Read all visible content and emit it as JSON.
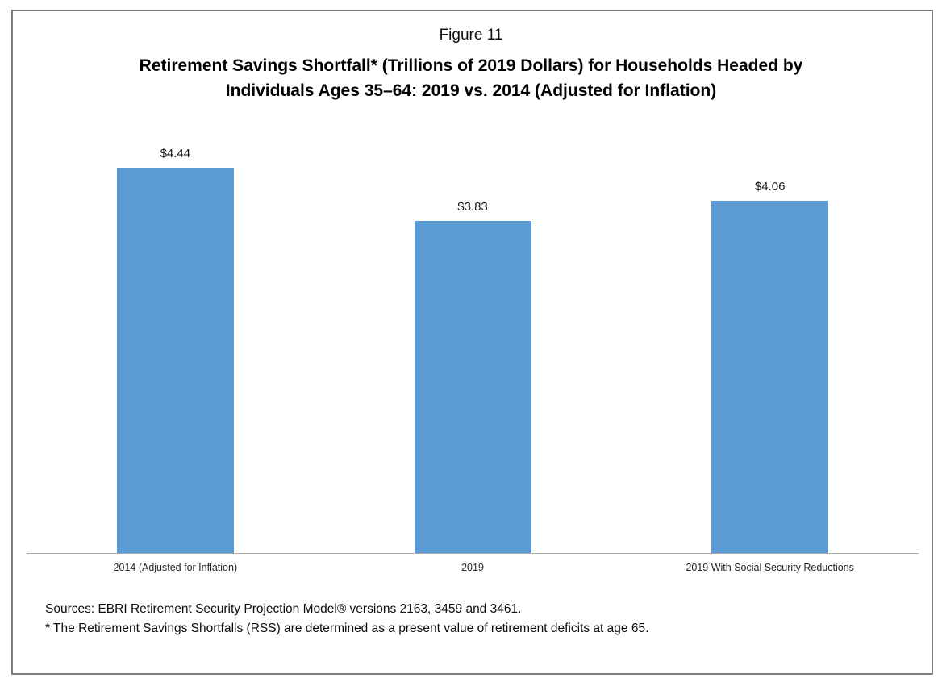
{
  "figure": {
    "title": "Figure 11",
    "subtitle_line1": "Retirement Savings Shortfall* (Trillions of 2019 Dollars) for Households Headed by",
    "subtitle_line2": "Individuals Ages 35–64: 2019 vs. 2014 (Adjusted for Inflation)"
  },
  "chart_data": {
    "type": "bar",
    "title": "Figure 11",
    "subtitle": "Retirement Savings Shortfall* (Trillions of 2019 Dollars) for Households Headed by Individuals Ages 35–64: 2019 vs. 2014 (Adjusted for Inflation)",
    "categories": [
      "2014 (Adjusted for Inflation)",
      "2019",
      "2019 With Social Security Reductions"
    ],
    "values": [
      4.44,
      3.83,
      4.06
    ],
    "value_labels": [
      "$4.44",
      "$3.83",
      "$4.06"
    ],
    "unit": "Trillions of 2019 Dollars",
    "bar_color": "#5b9bd5",
    "axis_line_color": "#ababab",
    "ylim": [
      0,
      4.44
    ],
    "grid": false,
    "legend": false,
    "xlabel": "",
    "ylabel": ""
  },
  "footer": {
    "sources": "Sources: EBRI Retirement Security Projection Model® versions 2163, 3459 and 3461.",
    "footnote": "* The Retirement Savings Shortfalls (RSS) are determined as a present value of retirement deficits at age 65."
  }
}
